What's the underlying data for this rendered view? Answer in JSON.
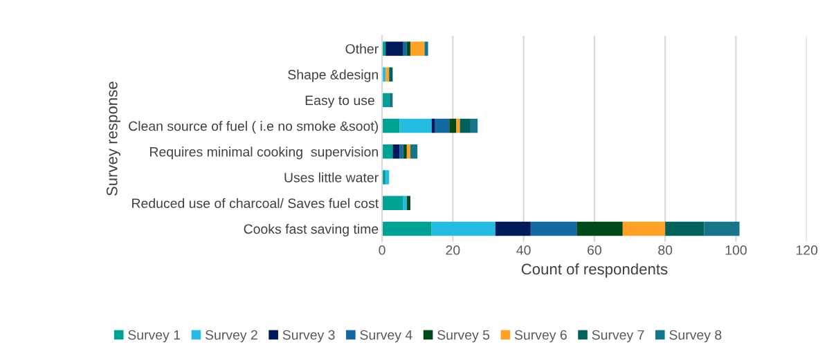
{
  "chart_data": {
    "type": "bar",
    "orientation": "horizontal",
    "stacked": true,
    "xlabel": "Count of respondents",
    "ylabel": "Survey response",
    "categories": [
      "Other",
      "Shape &design",
      "Easy to use ",
      "Clean source of fuel ( i.e no smoke &soot)",
      "Requires minimal cooking  supervision",
      "Uses little water",
      "Reduced use of charcoal/ Saves fuel cost",
      "Cooks fast saving time"
    ],
    "series": [
      {
        "name": "Survey 1",
        "color": "#00a296",
        "values": [
          1,
          0,
          2,
          5,
          3,
          1,
          6,
          14
        ]
      },
      {
        "name": "Survey 2",
        "color": "#26bce1",
        "values": [
          0,
          1,
          0,
          9,
          0,
          1,
          1,
          18
        ]
      },
      {
        "name": "Survey 3",
        "color": "#001a5a",
        "values": [
          5,
          0,
          0,
          1,
          2,
          0,
          0,
          10
        ]
      },
      {
        "name": "Survey 4",
        "color": "#126aa0",
        "values": [
          1,
          0,
          0,
          4,
          1,
          0,
          0,
          13
        ]
      },
      {
        "name": "Survey 5",
        "color": "#004a1a",
        "values": [
          1,
          0,
          0,
          2,
          1,
          0,
          1,
          13
        ]
      },
      {
        "name": "Survey 6",
        "color": "#ffa126",
        "values": [
          4,
          1,
          0,
          1,
          1,
          0,
          0,
          12
        ]
      },
      {
        "name": "Survey 7",
        "color": "#00625b",
        "values": [
          0,
          1,
          0,
          3,
          0,
          0,
          0,
          11
        ]
      },
      {
        "name": "Survey 8",
        "color": "#177589",
        "values": [
          1,
          0,
          1,
          2,
          2,
          0,
          0,
          10
        ]
      }
    ],
    "xlim": [
      0,
      120
    ],
    "xticks": [
      0,
      20,
      40,
      60,
      80,
      100,
      120
    ],
    "grid": "x",
    "legend": "bottom"
  }
}
